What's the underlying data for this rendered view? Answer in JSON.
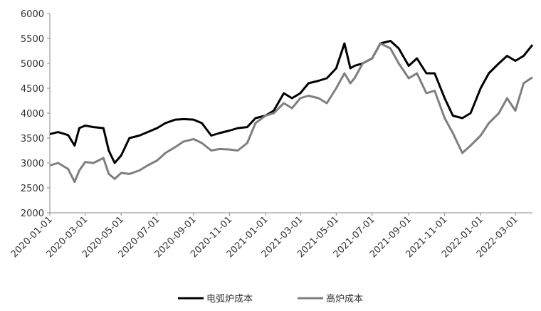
{
  "chart_data": {
    "type": "line",
    "x": [
      "2020-01-01",
      "2020-01-15",
      "2020-02-01",
      "2020-02-12",
      "2020-02-20",
      "2020-03-01",
      "2020-03-15",
      "2020-04-01",
      "2020-04-10",
      "2020-04-20",
      "2020-05-01",
      "2020-05-15",
      "2020-06-01",
      "2020-06-15",
      "2020-07-01",
      "2020-07-15",
      "2020-08-01",
      "2020-08-15",
      "2020-09-01",
      "2020-09-15",
      "2020-10-01",
      "2020-10-15",
      "2020-11-01",
      "2020-11-15",
      "2020-12-01",
      "2020-12-15",
      "2021-01-01",
      "2021-01-15",
      "2021-02-01",
      "2021-02-15",
      "2021-03-01",
      "2021-03-15",
      "2021-04-01",
      "2021-04-15",
      "2021-05-01",
      "2021-05-15",
      "2021-05-25",
      "2021-06-01",
      "2021-06-15",
      "2021-07-01",
      "2021-07-15",
      "2021-08-01",
      "2021-08-15",
      "2021-09-01",
      "2021-09-15",
      "2021-10-01",
      "2021-10-15",
      "2021-11-01",
      "2021-11-15",
      "2021-12-01",
      "2021-12-15",
      "2022-01-01",
      "2022-01-15",
      "2022-02-01",
      "2022-02-15",
      "2022-03-01",
      "2022-03-15",
      "2022-03-30"
    ],
    "series": [
      {
        "name": "电弧炉成本",
        "color": "#000000",
        "values": [
          3580,
          3620,
          3560,
          3350,
          3700,
          3750,
          3720,
          3700,
          3250,
          3000,
          3150,
          3500,
          3550,
          3620,
          3700,
          3800,
          3870,
          3880,
          3870,
          3800,
          3550,
          3600,
          3650,
          3700,
          3720,
          3900,
          3950,
          4050,
          4400,
          4300,
          4400,
          4600,
          4650,
          4700,
          4900,
          5400,
          4900,
          4950,
          5000,
          5100,
          5400,
          5450,
          5300,
          4950,
          5100,
          4800,
          4800,
          4300,
          3950,
          3900,
          4000,
          4500,
          4800,
          5000,
          5150,
          5050,
          5150,
          5370
        ]
      },
      {
        "name": "高炉成本",
        "color": "#7f7f7f",
        "values": [
          2950,
          3000,
          2880,
          2620,
          2850,
          3020,
          3000,
          3100,
          2780,
          2680,
          2800,
          2780,
          2850,
          2950,
          3050,
          3200,
          3320,
          3430,
          3480,
          3400,
          3250,
          3280,
          3270,
          3250,
          3400,
          3800,
          3950,
          4000,
          4200,
          4100,
          4300,
          4350,
          4300,
          4200,
          4500,
          4800,
          4600,
          4700,
          5000,
          5100,
          5400,
          5300,
          5000,
          4700,
          4800,
          4400,
          4450,
          3900,
          3600,
          3200,
          3350,
          3550,
          3800,
          4000,
          4300,
          4050,
          4600,
          4720
        ]
      }
    ],
    "xlim": [
      "2020-01-01",
      "2022-03-30"
    ],
    "xticks": [
      "2020-01-01",
      "2020-03-01",
      "2020-05-01",
      "2020-07-01",
      "2020-09-01",
      "2020-11-01",
      "2021-01-01",
      "2021-03-01",
      "2021-05-01",
      "2021-07-01",
      "2021-09-01",
      "2021-11-01",
      "2022-01-01",
      "2022-03-01"
    ],
    "ylim": [
      2000,
      6000
    ],
    "yticks": [
      2000,
      2500,
      3000,
      3500,
      4000,
      4500,
      5000,
      5500,
      6000
    ],
    "legend": "bottom"
  }
}
